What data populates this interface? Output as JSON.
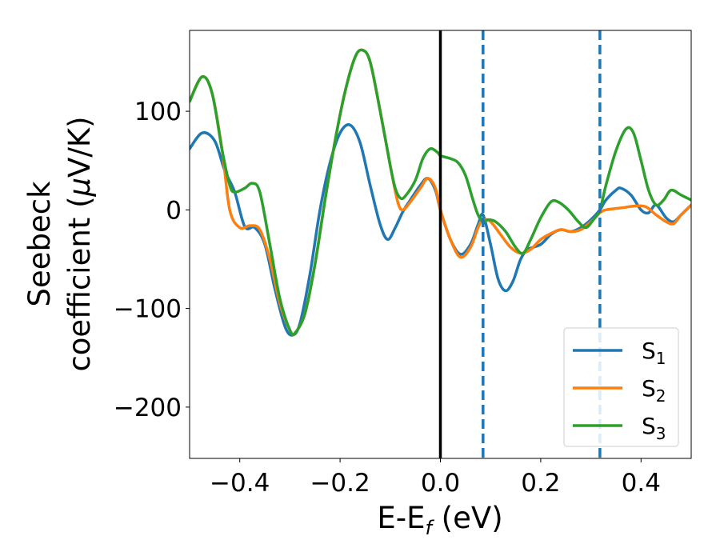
{
  "chart_data": {
    "type": "line",
    "xlabel": {
      "main": "E-E",
      "sub": "f",
      "unit": " (eV)"
    },
    "ylabel": {
      "line1": "Seebeck",
      "line2": "coefficient  (",
      "mu": "μ",
      "unit": "V/K)"
    },
    "xlim": [
      -0.5,
      0.5
    ],
    "ylim": [
      -252,
      182
    ],
    "x_ticks": [
      -0.4,
      -0.2,
      0.0,
      0.2,
      0.4
    ],
    "x_tick_labels": [
      "−0.4",
      "−0.2",
      "0.0",
      "0.2",
      "0.4"
    ],
    "y_ticks": [
      -200,
      -100,
      0,
      100
    ],
    "y_tick_labels": [
      "−200",
      "−100",
      "0",
      "100"
    ],
    "grid": false,
    "legend_position": "lower-right",
    "reference_lines": [
      {
        "x": 0.0,
        "style": "solid",
        "color": "#000000"
      },
      {
        "x": 0.085,
        "style": "dashed",
        "color": "#1f77b4"
      },
      {
        "x": 0.318,
        "style": "dashed",
        "color": "#1f77b4"
      }
    ],
    "series": [
      {
        "name": "S",
        "sub": "1",
        "color": "#1f77b4",
        "points": [
          [
            -0.5,
            62
          ],
          [
            -0.475,
            78
          ],
          [
            -0.45,
            70
          ],
          [
            -0.43,
            40
          ],
          [
            -0.41,
            18
          ],
          [
            -0.39,
            -17
          ],
          [
            -0.37,
            -18
          ],
          [
            -0.35,
            -35
          ],
          [
            -0.33,
            -80
          ],
          [
            -0.31,
            -118
          ],
          [
            -0.295,
            -127
          ],
          [
            -0.28,
            -115
          ],
          [
            -0.26,
            -65
          ],
          [
            -0.24,
            0
          ],
          [
            -0.22,
            48
          ],
          [
            -0.2,
            78
          ],
          [
            -0.18,
            86
          ],
          [
            -0.16,
            68
          ],
          [
            -0.14,
            25
          ],
          [
            -0.12,
            -15
          ],
          [
            -0.105,
            -30
          ],
          [
            -0.09,
            -18
          ],
          [
            -0.075,
            -2
          ],
          [
            -0.06,
            10
          ],
          [
            -0.04,
            25
          ],
          [
            -0.025,
            32
          ],
          [
            -0.01,
            20
          ],
          [
            0.0,
            0
          ],
          [
            0.02,
            -30
          ],
          [
            0.04,
            -45
          ],
          [
            0.06,
            -35
          ],
          [
            0.075,
            -15
          ],
          [
            0.085,
            -5
          ],
          [
            0.1,
            -35
          ],
          [
            0.115,
            -70
          ],
          [
            0.13,
            -82
          ],
          [
            0.145,
            -72
          ],
          [
            0.16,
            -50
          ],
          [
            0.175,
            -40
          ],
          [
            0.2,
            -35
          ],
          [
            0.22,
            -25
          ],
          [
            0.24,
            -20
          ],
          [
            0.26,
            -22
          ],
          [
            0.28,
            -18
          ],
          [
            0.3,
            -10
          ],
          [
            0.318,
            0
          ],
          [
            0.33,
            10
          ],
          [
            0.35,
            20
          ],
          [
            0.36,
            22
          ],
          [
            0.38,
            15
          ],
          [
            0.4,
            0
          ],
          [
            0.415,
            -3
          ],
          [
            0.43,
            5
          ],
          [
            0.45,
            -8
          ],
          [
            0.465,
            -12
          ],
          [
            0.48,
            -5
          ],
          [
            0.5,
            5
          ]
        ]
      },
      {
        "name": "S",
        "sub": "2",
        "color": "#ff7f0e",
        "points": [
          [
            -0.5,
            110
          ],
          [
            -0.475,
            135
          ],
          [
            -0.455,
            118
          ],
          [
            -0.435,
            60
          ],
          [
            -0.42,
            0
          ],
          [
            -0.4,
            -18
          ],
          [
            -0.38,
            -16
          ],
          [
            -0.36,
            -20
          ],
          [
            -0.34,
            -50
          ],
          [
            -0.32,
            -95
          ],
          [
            -0.3,
            -122
          ],
          [
            -0.29,
            -125
          ],
          [
            -0.27,
            -105
          ],
          [
            -0.25,
            -55
          ],
          [
            -0.23,
            10
          ],
          [
            -0.21,
            70
          ],
          [
            -0.19,
            120
          ],
          [
            -0.17,
            155
          ],
          [
            -0.155,
            162
          ],
          [
            -0.14,
            150
          ],
          [
            -0.12,
            100
          ],
          [
            -0.1,
            45
          ],
          [
            -0.085,
            8
          ],
          [
            -0.075,
            0
          ],
          [
            -0.06,
            8
          ],
          [
            -0.04,
            22
          ],
          [
            -0.025,
            32
          ],
          [
            -0.01,
            22
          ],
          [
            0.0,
            0
          ],
          [
            0.02,
            -30
          ],
          [
            0.04,
            -48
          ],
          [
            0.06,
            -38
          ],
          [
            0.075,
            -18
          ],
          [
            0.085,
            -10
          ],
          [
            0.1,
            -12
          ],
          [
            0.12,
            -25
          ],
          [
            0.14,
            -38
          ],
          [
            0.16,
            -44
          ],
          [
            0.18,
            -40
          ],
          [
            0.2,
            -30
          ],
          [
            0.22,
            -24
          ],
          [
            0.24,
            -20
          ],
          [
            0.26,
            -22
          ],
          [
            0.28,
            -20
          ],
          [
            0.3,
            -12
          ],
          [
            0.318,
            -3
          ],
          [
            0.33,
            0
          ],
          [
            0.36,
            2
          ],
          [
            0.39,
            4
          ],
          [
            0.41,
            3
          ],
          [
            0.43,
            -5
          ],
          [
            0.45,
            -12
          ],
          [
            0.465,
            -14
          ],
          [
            0.48,
            -5
          ],
          [
            0.5,
            5
          ]
        ]
      },
      {
        "name": "S",
        "sub": "3",
        "color": "#2ca02c",
        "points": [
          [
            -0.5,
            110
          ],
          [
            -0.475,
            135
          ],
          [
            -0.455,
            118
          ],
          [
            -0.435,
            60
          ],
          [
            -0.42,
            25
          ],
          [
            -0.41,
            18
          ],
          [
            -0.39,
            22
          ],
          [
            -0.375,
            27
          ],
          [
            -0.36,
            18
          ],
          [
            -0.34,
            -35
          ],
          [
            -0.32,
            -90
          ],
          [
            -0.3,
            -122
          ],
          [
            -0.29,
            -125
          ],
          [
            -0.27,
            -105
          ],
          [
            -0.25,
            -55
          ],
          [
            -0.23,
            10
          ],
          [
            -0.21,
            70
          ],
          [
            -0.19,
            120
          ],
          [
            -0.17,
            155
          ],
          [
            -0.155,
            162
          ],
          [
            -0.14,
            150
          ],
          [
            -0.12,
            100
          ],
          [
            -0.1,
            45
          ],
          [
            -0.09,
            22
          ],
          [
            -0.08,
            12
          ],
          [
            -0.07,
            14
          ],
          [
            -0.05,
            30
          ],
          [
            -0.035,
            52
          ],
          [
            -0.02,
            62
          ],
          [
            -0.005,
            58
          ],
          [
            0.0,
            55
          ],
          [
            0.02,
            52
          ],
          [
            0.035,
            48
          ],
          [
            0.05,
            35
          ],
          [
            0.065,
            10
          ],
          [
            0.075,
            -5
          ],
          [
            0.085,
            -12
          ],
          [
            0.095,
            -10
          ],
          [
            0.11,
            -12
          ],
          [
            0.13,
            -22
          ],
          [
            0.15,
            -38
          ],
          [
            0.165,
            -44
          ],
          [
            0.18,
            -30
          ],
          [
            0.2,
            -8
          ],
          [
            0.22,
            8
          ],
          [
            0.235,
            8
          ],
          [
            0.255,
            0
          ],
          [
            0.275,
            -12
          ],
          [
            0.29,
            -18
          ],
          [
            0.305,
            -10
          ],
          [
            0.318,
            0
          ],
          [
            0.33,
            25
          ],
          [
            0.35,
            60
          ],
          [
            0.37,
            82
          ],
          [
            0.385,
            78
          ],
          [
            0.4,
            50
          ],
          [
            0.415,
            20
          ],
          [
            0.43,
            5
          ],
          [
            0.445,
            10
          ],
          [
            0.46,
            20
          ],
          [
            0.48,
            15
          ],
          [
            0.5,
            10
          ]
        ]
      }
    ]
  }
}
